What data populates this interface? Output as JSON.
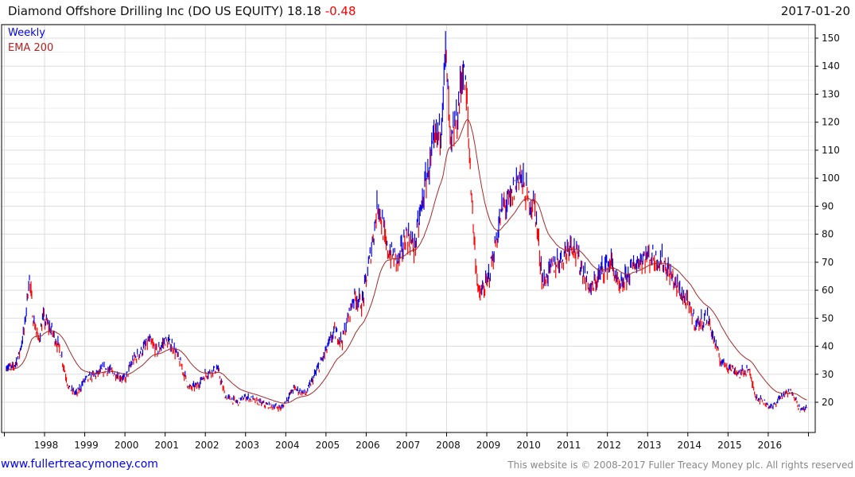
{
  "header": {
    "title": "Diamond Offshore Drilling Inc (DO US EQUITY) 18.18",
    "change": "-0.48",
    "date": "2017-01-20"
  },
  "footer": {
    "site": "www.fullertreacymoney.com",
    "copyright": "This website is © 2008-2017 Fuller Treacy Money plc. All rights reserved"
  },
  "colors": {
    "up": "#0000ee",
    "down": "#ff0000",
    "ema": "#a52a2a",
    "grid": "#dddddd"
  },
  "chart_data": {
    "type": "line",
    "title": "Diamond Offshore Drilling Inc (DO US EQUITY)",
    "legend": [
      "Weekly",
      "EMA 200"
    ],
    "legend_placement": "top-left",
    "xlim": [
      1997.0,
      2017.2
    ],
    "ylim": [
      10,
      153
    ],
    "x_ticks": [
      "1998",
      "1999",
      "2000",
      "2001",
      "2002",
      "2003",
      "2004",
      "2005",
      "2006",
      "2007",
      "2008",
      "2009",
      "2010",
      "2011",
      "2012",
      "2013",
      "2014",
      "2015",
      "2016"
    ],
    "y_ticks": [
      20,
      30,
      40,
      50,
      60,
      70,
      80,
      90,
      100,
      110,
      120,
      130,
      140,
      150
    ],
    "grid": true,
    "ema_period": 200,
    "price_keypoints": [
      [
        1997.05,
        33
      ],
      [
        1997.2,
        32
      ],
      [
        1997.35,
        36
      ],
      [
        1997.5,
        46
      ],
      [
        1997.62,
        65
      ],
      [
        1997.72,
        50
      ],
      [
        1997.85,
        42
      ],
      [
        1997.97,
        50
      ],
      [
        1998.2,
        45
      ],
      [
        1998.4,
        38
      ],
      [
        1998.6,
        25
      ],
      [
        1998.8,
        23
      ],
      [
        1999.0,
        28
      ],
      [
        1999.3,
        30
      ],
      [
        1999.5,
        32
      ],
      [
        1999.8,
        30
      ],
      [
        2000.0,
        28
      ],
      [
        2000.2,
        35
      ],
      [
        2000.4,
        38
      ],
      [
        2000.6,
        42
      ],
      [
        2000.8,
        38
      ],
      [
        2001.0,
        42
      ],
      [
        2001.2,
        40
      ],
      [
        2001.4,
        33
      ],
      [
        2001.6,
        25
      ],
      [
        2001.8,
        26
      ],
      [
        2002.0,
        30
      ],
      [
        2002.3,
        32
      ],
      [
        2002.5,
        22
      ],
      [
        2002.8,
        20
      ],
      [
        2003.0,
        22
      ],
      [
        2003.5,
        19
      ],
      [
        2003.9,
        18
      ],
      [
        2004.2,
        25
      ],
      [
        2004.5,
        23
      ],
      [
        2004.9,
        35
      ],
      [
        2005.2,
        45
      ],
      [
        2005.4,
        42
      ],
      [
        2005.7,
        58
      ],
      [
        2005.9,
        55
      ],
      [
        2006.1,
        72
      ],
      [
        2006.3,
        92
      ],
      [
        2006.5,
        75
      ],
      [
        2006.8,
        70
      ],
      [
        2007.0,
        80
      ],
      [
        2007.2,
        75
      ],
      [
        2007.5,
        100
      ],
      [
        2007.7,
        112
      ],
      [
        2007.85,
        118
      ],
      [
        2007.98,
        145
      ],
      [
        2008.1,
        110
      ],
      [
        2008.3,
        125
      ],
      [
        2008.4,
        140
      ],
      [
        2008.5,
        128
      ],
      [
        2008.6,
        100
      ],
      [
        2008.7,
        75
      ],
      [
        2008.8,
        58
      ],
      [
        2009.0,
        62
      ],
      [
        2009.2,
        75
      ],
      [
        2009.4,
        90
      ],
      [
        2009.6,
        92
      ],
      [
        2009.8,
        102
      ],
      [
        2010.0,
        93
      ],
      [
        2010.2,
        90
      ],
      [
        2010.3,
        75
      ],
      [
        2010.4,
        62
      ],
      [
        2010.6,
        68
      ],
      [
        2010.9,
        72
      ],
      [
        2011.1,
        78
      ],
      [
        2011.3,
        70
      ],
      [
        2011.6,
        60
      ],
      [
        2011.9,
        68
      ],
      [
        2012.1,
        70
      ],
      [
        2012.3,
        60
      ],
      [
        2012.6,
        68
      ],
      [
        2012.9,
        72
      ],
      [
        2013.1,
        72
      ],
      [
        2013.4,
        70
      ],
      [
        2013.7,
        62
      ],
      [
        2014.0,
        55
      ],
      [
        2014.2,
        48
      ],
      [
        2014.5,
        50
      ],
      [
        2014.8,
        35
      ],
      [
        2015.0,
        33
      ],
      [
        2015.3,
        30
      ],
      [
        2015.5,
        32
      ],
      [
        2015.7,
        22
      ],
      [
        2015.9,
        20
      ],
      [
        2016.1,
        18
      ],
      [
        2016.3,
        22
      ],
      [
        2016.6,
        24
      ],
      [
        2016.8,
        17
      ],
      [
        2016.97,
        18.18
      ]
    ]
  }
}
